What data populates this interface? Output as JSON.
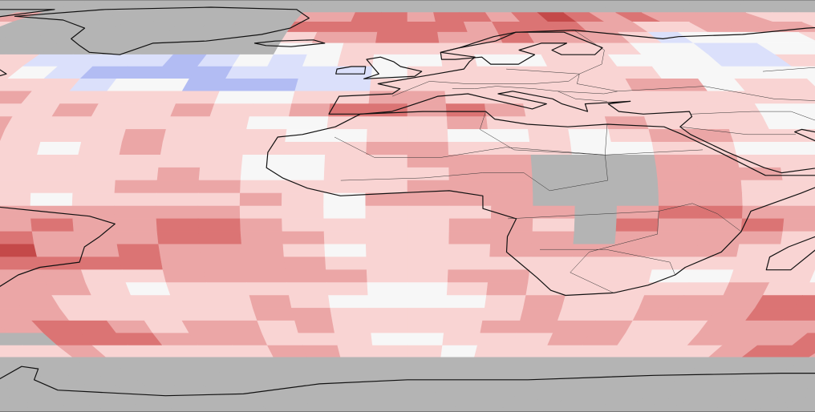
{
  "map": {
    "projection": "Robinson",
    "grid": {
      "cols": 72,
      "rows": 36,
      "resolution_deg": 5
    },
    "colors": {
      "no_data": "#b4b4b4",
      "neutral": "#f7f7f7",
      "warm_1": "#f9d4d3",
      "warm_2": "#eba6a6",
      "warm_3": "#db7474",
      "warm_4": "#c44949",
      "cool_1": "#dbe0fb",
      "cool_2": "#b2bcf3",
      "cool_3": "#8a9be8",
      "coastline": "#111111",
      "border": "#333333",
      "outline": "#666666"
    },
    "anomaly_levels": [
      "cool_3",
      "cool_2",
      "cool_1",
      "neutral",
      "warm_1",
      "warm_2",
      "warm_3",
      "warm_4"
    ],
    "icons": {
      "map": "world-map-icon"
    }
  }
}
